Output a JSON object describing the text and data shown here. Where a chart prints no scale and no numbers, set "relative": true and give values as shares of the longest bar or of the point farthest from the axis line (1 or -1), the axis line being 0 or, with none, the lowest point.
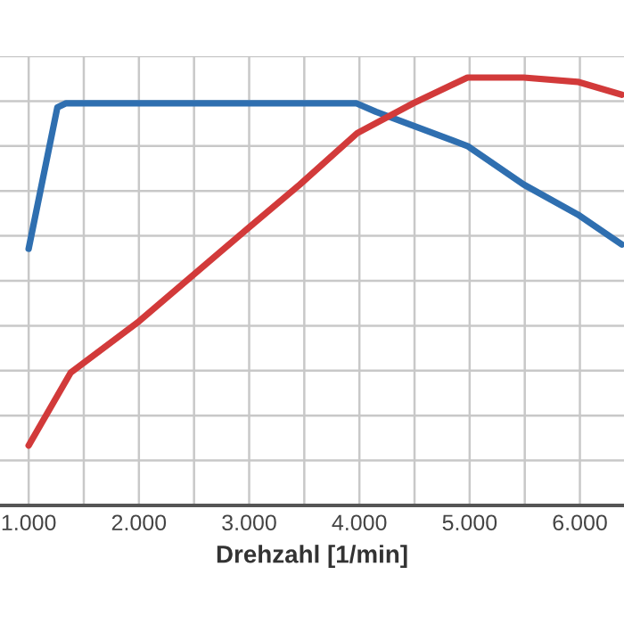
{
  "chart_data": {
    "type": "line",
    "relative": true,
    "xlabel": "Drehzahl [1/min]",
    "xlim": [
      740,
      6400
    ],
    "xticks": [
      {
        "value": 1000,
        "label": "1.000"
      },
      {
        "value": 2000,
        "label": "2.000"
      },
      {
        "value": 3000,
        "label": "3.000"
      },
      {
        "value": 4000,
        "label": "4.000"
      },
      {
        "value": 5000,
        "label": "5.000"
      },
      {
        "value": 6000,
        "label": "6.000"
      }
    ],
    "grid": true,
    "tick_labels": "x",
    "series": [
      {
        "color": "#2f6fb0",
        "x": [
          1000,
          1260,
          1340,
          3970,
          4150,
          4980,
          5490,
          5980,
          6380
        ],
        "values": [
          0.6,
          0.93,
          0.94,
          0.94,
          0.92,
          0.84,
          0.75,
          0.68,
          0.61
        ]
      },
      {
        "color": "#d23a3a",
        "x": [
          1000,
          1380,
          2000,
          3000,
          3460,
          3980,
          4490,
          4980,
          5490,
          5980,
          6380
        ],
        "values": [
          0.14,
          0.31,
          0.43,
          0.65,
          0.75,
          0.87,
          0.94,
          1.0,
          1.0,
          0.99,
          0.96
        ]
      }
    ]
  }
}
